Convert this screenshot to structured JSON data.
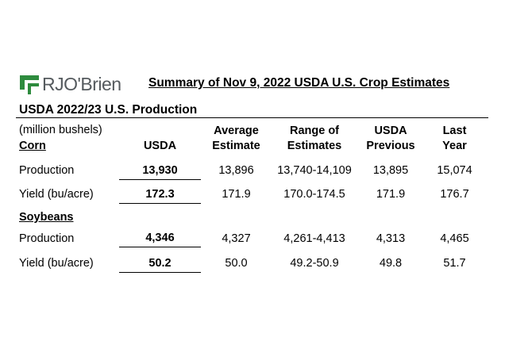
{
  "logo": {
    "text": "RJO'Brien",
    "brand_color": "#2e8b3e",
    "icon": "rjobrien-logo-icon"
  },
  "title": "Summary of Nov 9, 2022 USDA U.S. Crop Estimates",
  "section": "USDA 2022/23 U.S. Production",
  "units": "(million bushels)",
  "columns": {
    "usda": "USDA",
    "avg_1": "Average",
    "avg_2": "Estimate",
    "range_1": "Range of",
    "range_2": "Estimates",
    "prev_1": "USDA",
    "prev_2": "Previous",
    "last_1": "Last",
    "last_2": "Year"
  },
  "corn": {
    "label": "Corn",
    "rows": [
      {
        "label": "Production",
        "usda": "13,930",
        "avg": "13,896",
        "range": "13,740-14,109",
        "prev": "13,895",
        "last": "15,074"
      },
      {
        "label": "Yield (bu/acre)",
        "usda": "172.3",
        "avg": "171.9",
        "range": "170.0-174.5",
        "prev": "171.9",
        "last": "176.7"
      }
    ]
  },
  "soybeans": {
    "label": "Soybeans",
    "rows": [
      {
        "label": "Production",
        "usda": "4,346",
        "avg": "4,327",
        "range": "4,261-4,413",
        "prev": "4,313",
        "last": "4,465"
      },
      {
        "label": "Yield (bu/acre)",
        "usda": "50.2",
        "avg": "50.0",
        "range": "49.2-50.9",
        "prev": "49.8",
        "last": "51.7"
      }
    ]
  }
}
